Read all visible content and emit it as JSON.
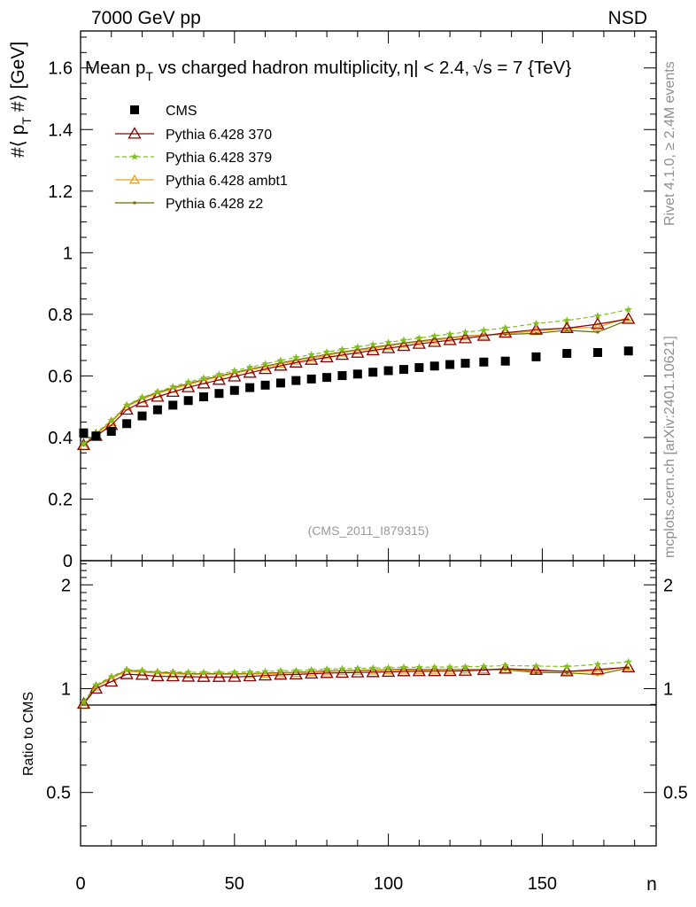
{
  "header": {
    "left": "7000 GeV pp",
    "right": "NSD"
  },
  "side_text": {
    "rivet": "Rivet 4.1.0, ≥ 2.4M events",
    "mcplots": "mcplots.cern.ch [arXiv:2401.10621]"
  },
  "colors": {
    "cms": "#000000",
    "p370": "#8b0000",
    "p379": "#7fbf1f",
    "ambt1": "#f0a01e",
    "z2": "#6b6b00",
    "watermark": "#999999"
  },
  "chart_data": {
    "type": "line",
    "title": "Mean p_T vs charged hadron multiplicity, |η| < 2.4, √s = 7 {TeV}",
    "title_parts": {
      "a": "Mean p",
      "sub": "T",
      "b": " vs charged hadron multiplicity,",
      "eta": "η| < 2.4,",
      "sqrt": "√",
      "c": "s = 7 {TeV}"
    },
    "ylabel_parts": {
      "a": "#⟨ p",
      "sub": "T",
      "b": " #⟩ [GeV]"
    },
    "xlabel": "n",
    "ratio_ylabel": "Ratio to CMS",
    "analysis_id": "(CMS_2011_I879315)",
    "xlim": [
      0,
      187
    ],
    "ylim": [
      0,
      1.72
    ],
    "ratio_ylim": [
      0.35,
      2.35
    ],
    "x_ticks": [
      "0",
      "50",
      "100",
      "150"
    ],
    "y_ticks": [
      "0",
      "0.2",
      "0.4",
      "0.6",
      "0.8",
      "1",
      "1.2",
      "1.4",
      "1.6"
    ],
    "ratio_ticks": [
      "0.5",
      "1",
      "2"
    ],
    "legend": [
      {
        "name": "CMS",
        "key": "cms"
      },
      {
        "name": "Pythia 6.428 370",
        "key": "p370"
      },
      {
        "name": "Pythia 6.428 379",
        "key": "p379"
      },
      {
        "name": "Pythia 6.428 ambt1",
        "key": "ambt1"
      },
      {
        "name": "Pythia 6.428 z2",
        "key": "z2"
      }
    ],
    "x": [
      1,
      5,
      10,
      15,
      20,
      25,
      30,
      35,
      40,
      45,
      50,
      55,
      60,
      65,
      70,
      75,
      80,
      85,
      90,
      95,
      100,
      105,
      110,
      115,
      120,
      125,
      131,
      138,
      148,
      158,
      168,
      178
    ],
    "series": [
      {
        "name": "CMS",
        "key": "cms",
        "values": [
          0.415,
          0.405,
          0.42,
          0.445,
          0.47,
          0.49,
          0.505,
          0.52,
          0.532,
          0.543,
          0.553,
          0.562,
          0.57,
          0.577,
          0.585,
          0.59,
          0.595,
          0.601,
          0.606,
          0.612,
          0.617,
          0.621,
          0.627,
          0.632,
          0.637,
          0.641,
          0.645,
          0.648,
          0.662,
          0.673,
          0.676,
          0.681
        ]
      },
      {
        "name": "Pythia 6.428 370",
        "key": "p370",
        "values": [
          0.375,
          0.405,
          0.44,
          0.49,
          0.515,
          0.532,
          0.548,
          0.563,
          0.575,
          0.587,
          0.598,
          0.61,
          0.622,
          0.633,
          0.643,
          0.652,
          0.66,
          0.668,
          0.675,
          0.683,
          0.69,
          0.697,
          0.704,
          0.71,
          0.716,
          0.722,
          0.73,
          0.74,
          0.75,
          0.755,
          0.768,
          0.785
        ]
      },
      {
        "name": "Pythia 6.428 379",
        "key": "p379",
        "values": [
          0.38,
          0.415,
          0.455,
          0.505,
          0.53,
          0.548,
          0.565,
          0.58,
          0.593,
          0.605,
          0.617,
          0.628,
          0.639,
          0.65,
          0.66,
          0.669,
          0.678,
          0.686,
          0.694,
          0.702,
          0.709,
          0.716,
          0.723,
          0.73,
          0.736,
          0.742,
          0.748,
          0.756,
          0.77,
          0.78,
          0.795,
          0.815
        ]
      },
      {
        "name": "Pythia 6.428 ambt1",
        "key": "ambt1",
        "values": [
          0.372,
          0.41,
          0.45,
          0.5,
          0.525,
          0.543,
          0.558,
          0.572,
          0.585,
          0.597,
          0.608,
          0.619,
          0.629,
          0.639,
          0.649,
          0.658,
          0.667,
          0.675,
          0.682,
          0.69,
          0.697,
          0.704,
          0.71,
          0.716,
          0.722,
          0.728,
          0.733,
          0.738,
          0.745,
          0.755,
          0.758,
          0.79
        ]
      },
      {
        "name": "Pythia 6.428 z2",
        "key": "z2",
        "values": [
          0.375,
          0.412,
          0.452,
          0.503,
          0.528,
          0.546,
          0.561,
          0.575,
          0.588,
          0.6,
          0.611,
          0.622,
          0.632,
          0.642,
          0.652,
          0.661,
          0.67,
          0.678,
          0.685,
          0.693,
          0.7,
          0.707,
          0.713,
          0.719,
          0.724,
          0.73,
          0.733,
          0.735,
          0.738,
          0.748,
          0.742,
          0.782
        ]
      }
    ]
  }
}
